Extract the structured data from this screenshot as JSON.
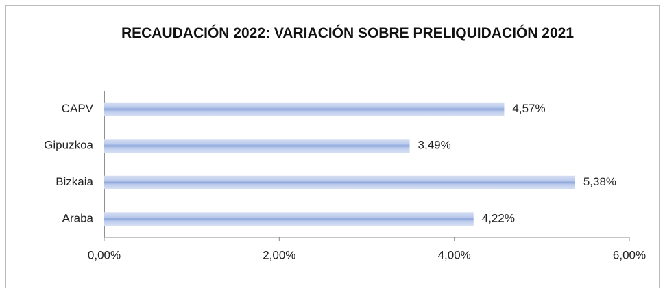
{
  "chart_data": {
    "type": "hbar",
    "title": "RECAUDACIÓN 2022: VARIACIÓN SOBRE PRELIQUIDACIÓN 2021",
    "categories": [
      "CAPV",
      "Gipuzkoa",
      "Bizkaia",
      "Araba"
    ],
    "values": [
      4.57,
      3.49,
      5.38,
      4.22
    ],
    "value_labels": [
      "4,57%",
      "3,49%",
      "5,38%",
      "4,22%"
    ],
    "color": "#a9bde6",
    "xlim": [
      0,
      6
    ],
    "xticks": [
      {
        "value": 0,
        "label": "0,00%"
      },
      {
        "value": 2,
        "label": "2,00%"
      },
      {
        "value": 4,
        "label": "4,00%"
      },
      {
        "value": 6,
        "label": "6,00%"
      }
    ]
  }
}
